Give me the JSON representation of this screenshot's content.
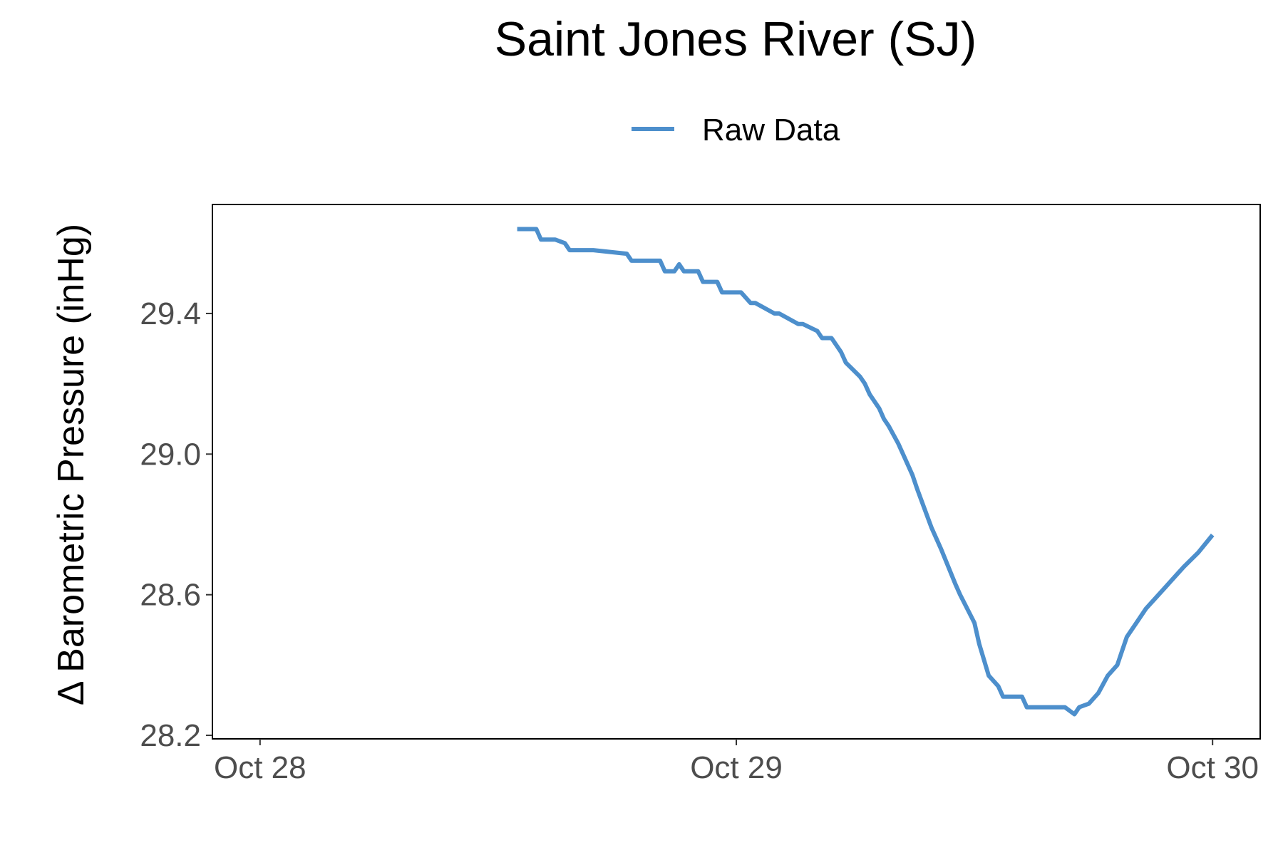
{
  "chart_data": {
    "type": "line",
    "title": "Saint Jones River (SJ)",
    "xlabel": "",
    "ylabel": "Δ Barometric Pressure (inHg)",
    "x_ticks": [
      "Oct 28",
      "Oct 29",
      "Oct 30"
    ],
    "y_ticks": [
      "28.2",
      "28.6",
      "29.0",
      "29.4"
    ],
    "xlim": [
      -0.1,
      2.1
    ],
    "ylim": [
      28.19,
      29.71
    ],
    "grid": false,
    "legend_position": "top",
    "series": [
      {
        "name": "Raw Data",
        "color": "#4d8fcc",
        "x": [
          0.54,
          0.58,
          0.59,
          0.62,
          0.64,
          0.65,
          0.7,
          0.77,
          0.78,
          0.84,
          0.85,
          0.87,
          0.88,
          0.89,
          0.92,
          0.93,
          0.96,
          0.97,
          1.01,
          1.03,
          1.04,
          1.08,
          1.09,
          1.13,
          1.14,
          1.17,
          1.18,
          1.2,
          1.22,
          1.23,
          1.26,
          1.27,
          1.28,
          1.3,
          1.31,
          1.32,
          1.34,
          1.35,
          1.37,
          1.38,
          1.41,
          1.43,
          1.46,
          1.47,
          1.5,
          1.51,
          1.53,
          1.55,
          1.56,
          1.6,
          1.61,
          1.63,
          1.65,
          1.68,
          1.69,
          1.71,
          1.72,
          1.74,
          1.76,
          1.78,
          1.8,
          1.81,
          1.82,
          1.84,
          1.86,
          1.9,
          1.94,
          1.97,
          2.0
        ],
        "y": [
          29.64,
          29.64,
          29.61,
          29.61,
          29.6,
          29.58,
          29.58,
          29.57,
          29.55,
          29.55,
          29.52,
          29.52,
          29.54,
          29.52,
          29.52,
          29.49,
          29.49,
          29.46,
          29.46,
          29.43,
          29.43,
          29.4,
          29.4,
          29.37,
          29.37,
          29.35,
          29.33,
          29.33,
          29.29,
          29.26,
          29.22,
          29.2,
          29.17,
          29.13,
          29.1,
          29.08,
          29.03,
          29.0,
          28.94,
          28.9,
          28.79,
          28.73,
          28.63,
          28.6,
          28.52,
          28.46,
          28.37,
          28.34,
          28.31,
          28.31,
          28.28,
          28.28,
          28.28,
          28.28,
          28.28,
          28.26,
          28.28,
          28.29,
          28.32,
          28.37,
          28.4,
          28.44,
          28.48,
          28.52,
          28.56,
          28.62,
          28.68,
          28.72,
          28.77
        ]
      }
    ]
  }
}
